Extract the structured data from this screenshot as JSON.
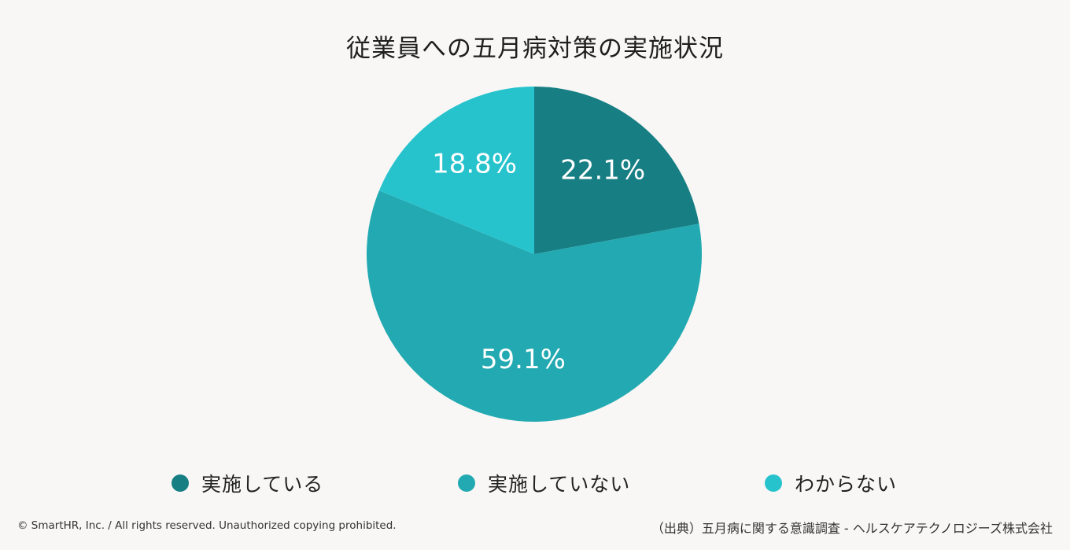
{
  "chart_data": {
    "type": "pie",
    "title": "従業員への五月病対策の実施状況",
    "categories": [
      "実施している",
      "実施していない",
      "わからない"
    ],
    "values": [
      22.1,
      59.1,
      18.8
    ],
    "labels": [
      "22.1%",
      "59.1%",
      "18.8%"
    ],
    "colors": [
      "#177f84",
      "#22a9b1",
      "#26c3cd"
    ],
    "legend_position": "bottom"
  },
  "footer": {
    "copyright": "© SmartHR, Inc. / All rights reserved. Unauthorized copying prohibited.",
    "source": "（出典）五月病に関する意識調査 - ヘルスケアテクノロジーズ株式会社"
  }
}
